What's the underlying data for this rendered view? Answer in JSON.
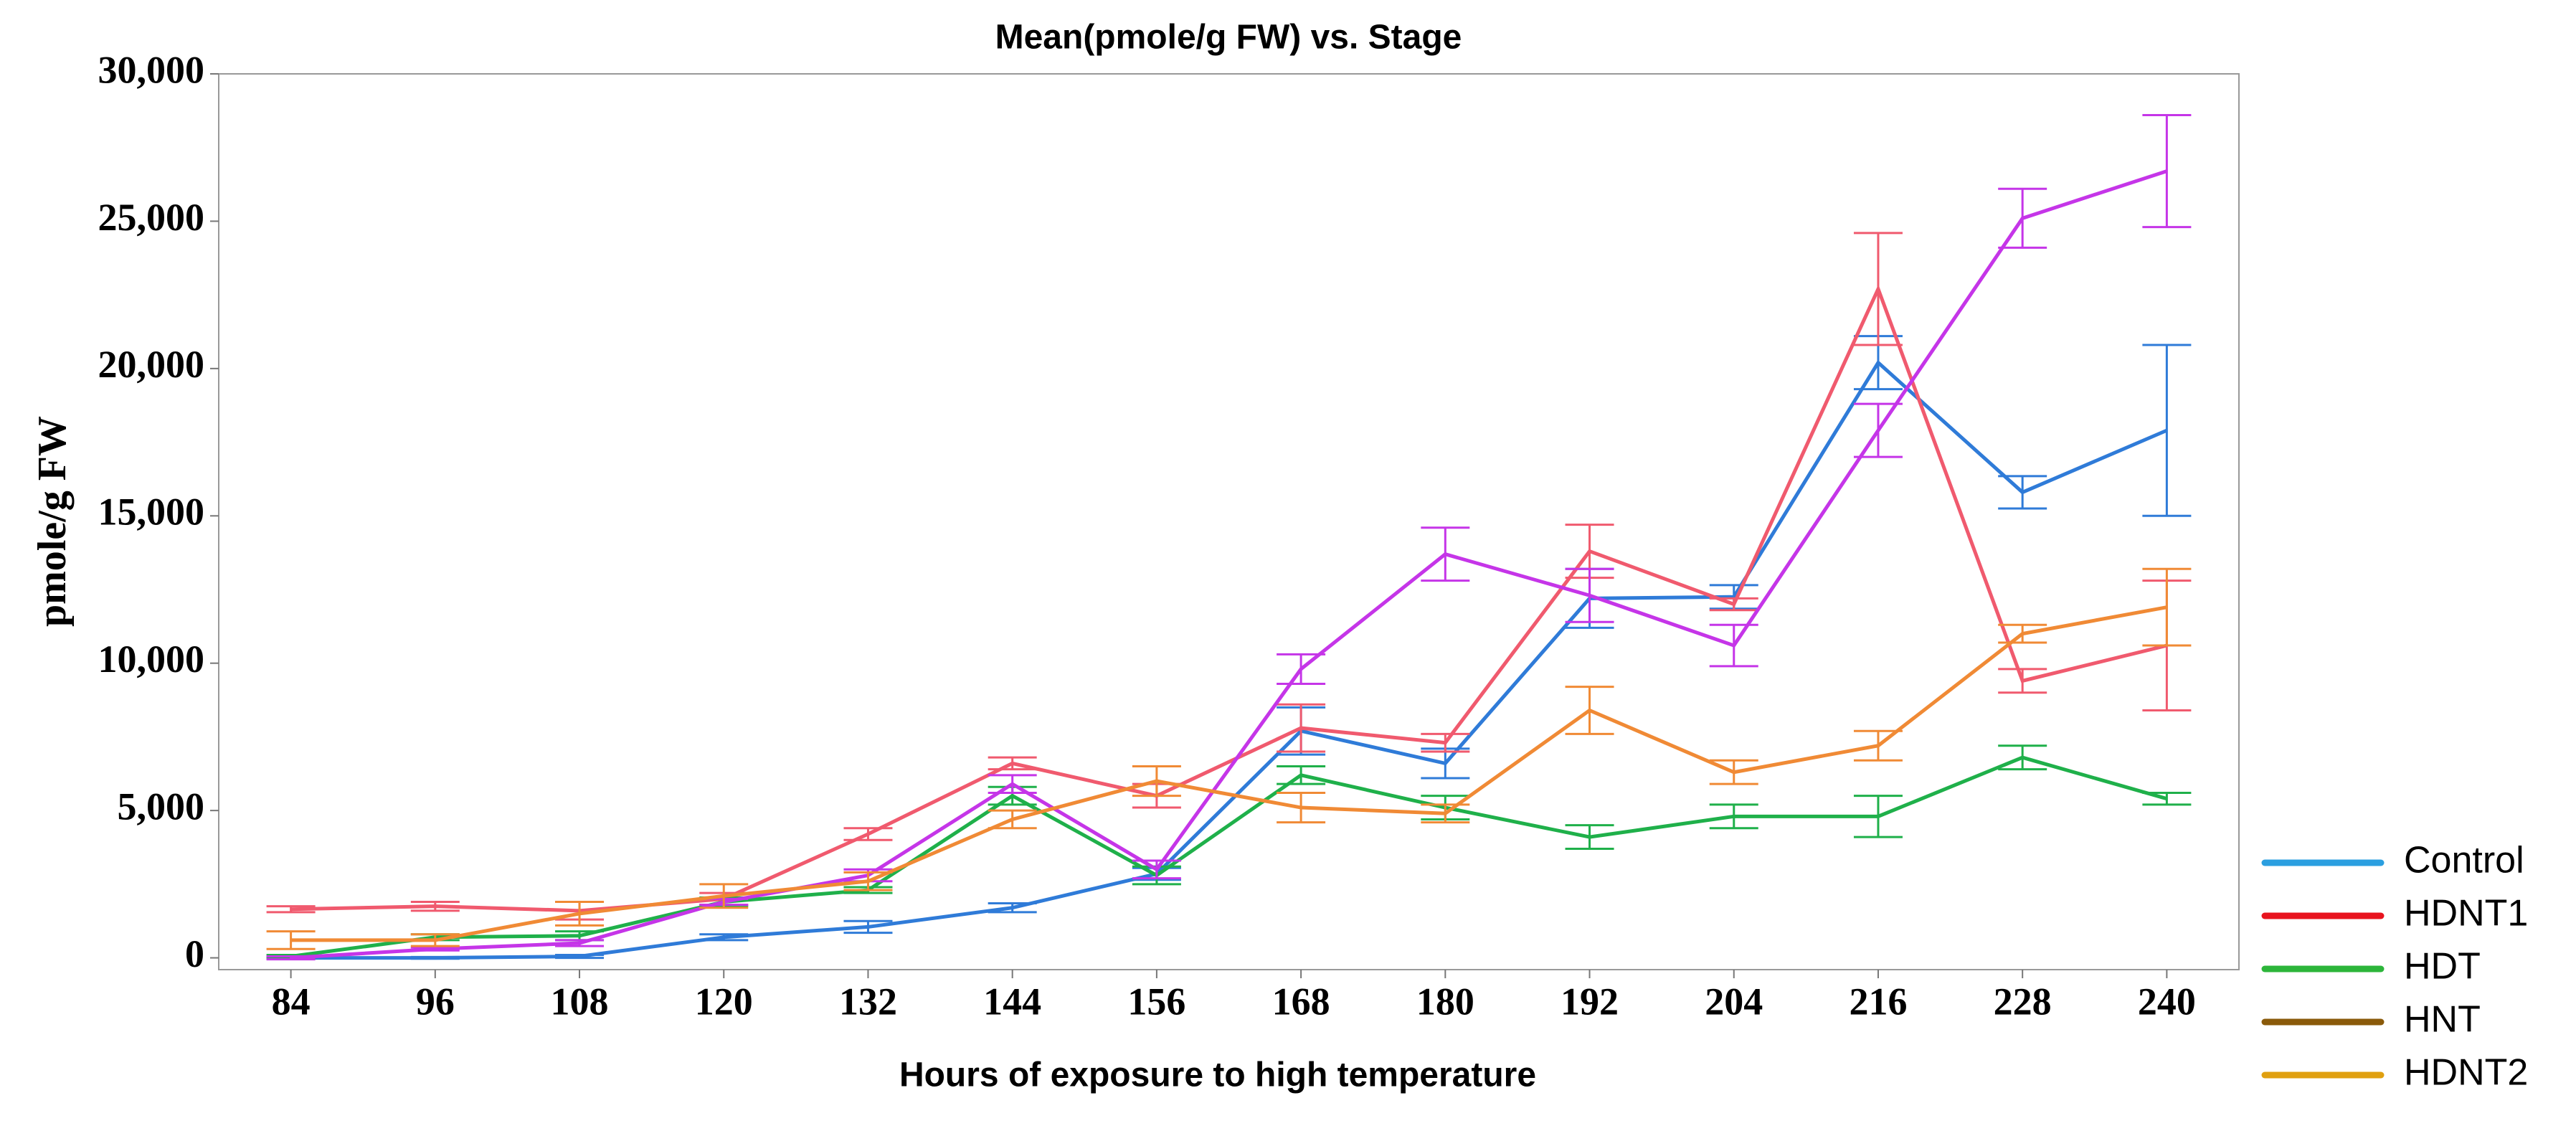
{
  "chart_data": {
    "type": "line",
    "title": "Mean(pmole/g FW) vs. Stage",
    "x_label": "Hours of exposure to high temperature",
    "y_label": "pmole/g FW",
    "x": [
      84,
      96,
      108,
      120,
      132,
      144,
      156,
      168,
      180,
      192,
      204,
      216,
      228,
      240
    ],
    "xlim": [
      78,
      246
    ],
    "xticks": [
      84,
      96,
      108,
      120,
      132,
      144,
      156,
      168,
      180,
      192,
      204,
      216,
      228,
      240
    ],
    "ylim": [
      -400,
      30000
    ],
    "yticks": [
      0,
      {
        "value": 5000,
        "label": "5,000"
      },
      {
        "value": 10000,
        "label": "10,000"
      },
      {
        "value": 15000,
        "label": "15,000"
      },
      {
        "value": 20000,
        "label": "20,000"
      },
      {
        "value": 25000,
        "label": "25,000"
      },
      {
        "value": 30000,
        "label": "30,000"
      }
    ],
    "legend_position": "lower right outside",
    "series": [
      {
        "name": "Control",
        "color": "#2f7bd8",
        "legend_color": "#2b9fe0",
        "values": [
          0,
          0,
          50,
          700,
          1050,
          1700,
          2850,
          7700,
          6600,
          12200,
          12250,
          20200,
          15800,
          17900
        ],
        "errors": [
          30,
          30,
          50,
          100,
          200,
          150,
          200,
          800,
          500,
          1000,
          400,
          900,
          550,
          2900
        ]
      },
      {
        "name": "HDNT1",
        "color": "#f05a6e",
        "legend_color": "#e8141e",
        "values": [
          1650,
          1750,
          1600,
          2000,
          4200,
          6600,
          5500,
          7800,
          7300,
          13800,
          12000,
          22700,
          9400,
          10600
        ],
        "errors": [
          100,
          150,
          300,
          200,
          200,
          200,
          400,
          800,
          300,
          900,
          200,
          1900,
          400,
          2200
        ]
      },
      {
        "name": "HDT",
        "color": "#1fb04a",
        "legend_color": "#2cb53a",
        "values": [
          50,
          700,
          750,
          1900,
          2300,
          5500,
          2800,
          6200,
          5100,
          4100,
          4800,
          4800,
          6800,
          5400
        ],
        "errors": [
          50,
          100,
          150,
          150,
          100,
          300,
          300,
          300,
          400,
          400,
          400,
          700,
          400,
          200
        ]
      },
      {
        "name": "HNT",
        "color": "#c535e8",
        "legend_color": "#8a5a0a",
        "values": [
          0,
          300,
          500,
          1900,
          2800,
          5900,
          3000,
          9800,
          13700,
          12300,
          10600,
          17900,
          25100,
          26700
        ],
        "errors": [
          50,
          50,
          100,
          100,
          200,
          300,
          300,
          500,
          900,
          900,
          700,
          900,
          1000,
          1900
        ]
      },
      {
        "name": "HDNT2",
        "color": "#f08a35",
        "legend_color": "#e0a010",
        "values": [
          600,
          600,
          1500,
          2100,
          2600,
          4700,
          6000,
          5100,
          4900,
          8400,
          6300,
          7200,
          11000,
          11900
        ],
        "errors": [
          300,
          200,
          400,
          400,
          300,
          300,
          500,
          500,
          300,
          800,
          400,
          500,
          300,
          1300
        ]
      }
    ]
  }
}
